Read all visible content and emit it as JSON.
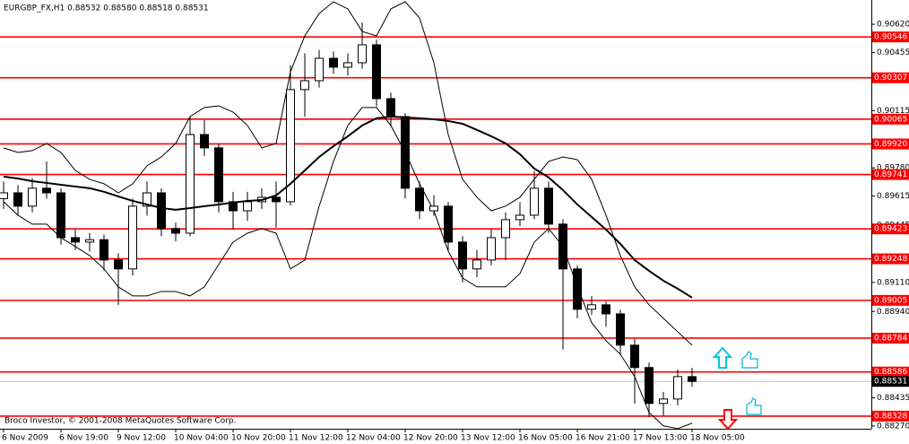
{
  "chart_data": {
    "type": "candlestick",
    "title": "EURGBP_FX,H1  0.88532 0.88580 0.88518 0.88531",
    "footer": "Broco Investor, © 2001-2008 MetaQuotes Software Corp.",
    "categories": [
      "6 Nov 2009",
      null,
      null,
      null,
      "6 Nov 19:00",
      null,
      null,
      null,
      "9 Nov 12:00",
      null,
      null,
      null,
      "10 Nov 04:00",
      null,
      null,
      null,
      "10 Nov 20:00",
      null,
      null,
      null,
      "11 Nov 12:00",
      null,
      null,
      null,
      "12 Nov 04:00",
      null,
      null,
      null,
      "12 Nov 20:00",
      null,
      null,
      null,
      "13 Nov 12:00",
      null,
      null,
      null,
      "16 Nov 05:00",
      null,
      null,
      null,
      "16 Nov 21:00",
      null,
      null,
      null,
      "17 Nov 13:00",
      null,
      null,
      null,
      "18 Nov 05:00"
    ],
    "open": [
      0.896,
      0.89634,
      0.89556,
      0.89661,
      0.89634,
      0.89372,
      0.89346,
      0.8936,
      0.89241,
      0.89189,
      0.89556,
      0.89634,
      0.89425,
      0.89398,
      0.89975,
      0.89897,
      0.89582,
      0.89529,
      0.89582,
      0.89608,
      0.89582,
      0.90238,
      0.9029,
      0.90421,
      0.90369,
      0.90395,
      0.905,
      0.90185,
      0.9008,
      0.89661,
      0.89529,
      0.89556,
      0.89346,
      0.89189,
      0.89241,
      0.89372,
      0.89477,
      0.89503,
      0.89661,
      0.89451,
      0.89189,
      0.88953,
      0.88979,
      0.88926,
      0.88743,
      0.88612,
      0.88402,
      0.88428,
      0.88559
    ],
    "high": [
      0.897,
      0.8968,
      0.8972,
      0.89818,
      0.8966,
      0.8942,
      0.894,
      0.8939,
      0.8928,
      0.896,
      0.897,
      0.8966,
      0.8946,
      0.9008,
      0.9006,
      0.8992,
      0.8964,
      0.8964,
      0.8966,
      0.897,
      0.9038,
      0.9045,
      0.9047,
      0.9046,
      0.9045,
      0.90631,
      0.9053,
      0.9022,
      0.901,
      0.897,
      0.8962,
      0.8958,
      0.8938,
      0.893,
      0.8942,
      0.8952,
      0.8958,
      0.8976,
      0.897,
      0.8948,
      0.8921,
      0.8903,
      0.89,
      0.8895,
      0.8878,
      0.8864,
      0.8847,
      0.886,
      0.8861
    ],
    "low": [
      0.8954,
      0.895,
      0.8952,
      0.896,
      0.8933,
      0.893,
      0.8929,
      0.8918,
      0.88979,
      0.8915,
      0.895,
      0.8938,
      0.8935,
      0.8938,
      0.8985,
      0.8952,
      0.8942,
      0.8947,
      0.8954,
      0.8943,
      0.8956,
      0.9008,
      0.9025,
      0.9033,
      0.9032,
      0.9036,
      0.9014,
      0.9002,
      0.896,
      0.8948,
      0.895,
      0.8929,
      0.8911,
      0.8914,
      0.8921,
      0.8924,
      0.8944,
      0.8948,
      0.894,
      0.88717,
      0.889,
      0.8892,
      0.8885,
      0.8869,
      0.884,
      0.88323,
      0.8833,
      0.8839,
      0.885
    ],
    "close": [
      0.89634,
      0.89556,
      0.89661,
      0.89634,
      0.89372,
      0.89346,
      0.8936,
      0.89241,
      0.89189,
      0.89556,
      0.89634,
      0.89425,
      0.89398,
      0.89975,
      0.89897,
      0.89582,
      0.89529,
      0.89582,
      0.89608,
      0.89582,
      0.90238,
      0.9029,
      0.90421,
      0.90369,
      0.90395,
      0.905,
      0.90185,
      0.9008,
      0.89661,
      0.89529,
      0.89556,
      0.89346,
      0.89189,
      0.89241,
      0.89372,
      0.89477,
      0.89503,
      0.89661,
      0.89451,
      0.89189,
      0.88953,
      0.88979,
      0.88926,
      0.88743,
      0.88612,
      0.88402,
      0.88428,
      0.88559,
      0.88531
    ],
    "moving_average": [
      0.89729,
      0.89718,
      0.89702,
      0.89692,
      0.89681,
      0.89671,
      0.89661,
      0.8964,
      0.89613,
      0.89587,
      0.89566,
      0.89545,
      0.89535,
      0.89545,
      0.89556,
      0.89566,
      0.89577,
      0.89587,
      0.89592,
      0.89619,
      0.89687,
      0.89765,
      0.89844,
      0.89907,
      0.89965,
      0.90028,
      0.9007,
      0.9008,
      0.90075,
      0.9007,
      0.90064,
      0.90054,
      0.90038,
      0.90002,
      0.89965,
      0.89923,
      0.8986,
      0.89776,
      0.89724,
      0.8965,
      0.89566,
      0.89493,
      0.89419,
      0.89335,
      0.89241,
      0.89178,
      0.8912,
      0.89073,
      0.89021
    ],
    "upper_band": [
      0.89897,
      0.8987,
      0.89881,
      0.89923,
      0.8987,
      0.89765,
      0.89713,
      0.89687,
      0.89634,
      0.89687,
      0.89792,
      0.89844,
      0.89923,
      0.9008,
      0.90133,
      0.90143,
      0.90106,
      0.90028,
      0.89897,
      0.89923,
      0.90342,
      0.90552,
      0.90683,
      0.90752,
      0.9071,
      0.90578,
      0.90552,
      0.9071,
      0.90752,
      0.90657,
      0.90395,
      0.89975,
      0.89713,
      0.89608,
      0.89529,
      0.89556,
      0.89608,
      0.89713,
      0.89818,
      0.89844,
      0.89828,
      0.89713,
      0.89503,
      0.89267,
      0.89084,
      0.88979,
      0.889,
      0.88821,
      0.88743
    ],
    "lower_band": [
      0.89582,
      0.89503,
      0.89451,
      0.89451,
      0.89372,
      0.8932,
      0.89267,
      0.89189,
      0.89084,
      0.89031,
      0.89031,
      0.89057,
      0.89057,
      0.89031,
      0.89084,
      0.89215,
      0.89346,
      0.89398,
      0.89425,
      0.89398,
      0.89189,
      0.89241,
      0.89556,
      0.89818,
      0.90028,
      0.90133,
      0.90133,
      0.90028,
      0.8987,
      0.89687,
      0.89529,
      0.89293,
      0.89136,
      0.89084,
      0.89084,
      0.89084,
      0.89162,
      0.89346,
      0.89425,
      0.8932,
      0.89084,
      0.88874,
      0.88769,
      0.8869,
      0.88559,
      0.88349,
      0.88271,
      0.88255,
      0.88286
    ],
    "levels": [
      0.90546,
      0.90307,
      0.90065,
      {
        "value": 0.8992,
        "label": "0.89920"
      },
      0.89741,
      0.89423,
      0.89248,
      0.89005,
      0.88784,
      0.88586,
      0.88328
    ],
    "last_price": 0.88531,
    "level_color": "#ff0000",
    "ylim": [
      0.88254,
      0.90762
    ],
    "yticks": [
      {
        "value": 0.9062,
        "label": "0.90620"
      },
      0.90455,
      0.90115,
      {
        "value": 0.8978,
        "label": "0.89780"
      },
      0.89615,
      0.89445,
      {
        "value": 0.8911,
        "label": "0.89110"
      },
      {
        "value": 0.8894,
        "label": "0.88940"
      },
      0.88435,
      {
        "value": 0.8827,
        "label": "0.88270"
      }
    ]
  }
}
